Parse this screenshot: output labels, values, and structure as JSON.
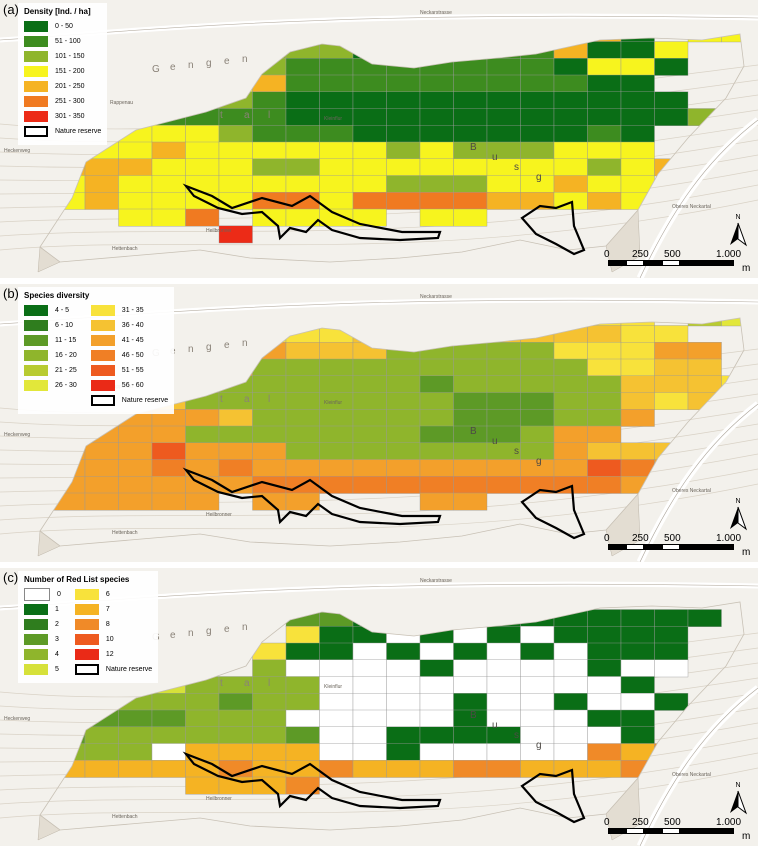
{
  "panels": [
    {
      "label": "(a)",
      "legend_title": "Density [Ind. / ha]",
      "legend_columns": [
        [
          {
            "label": "0 - 50",
            "color": "#0a6e16"
          },
          {
            "label": "51 - 100",
            "color": "#3d8c1f"
          },
          {
            "label": "101 - 150",
            "color": "#8fb52c"
          },
          {
            "label": "151 - 200",
            "color": "#f7f41e"
          },
          {
            "label": "201 - 250",
            "color": "#f5b323"
          },
          {
            "label": "251 - 300",
            "color": "#f07a21"
          },
          {
            "label": "301 - 350",
            "color": "#ec2b17"
          }
        ]
      ],
      "grid": [
        "......................5",
        "................551.44.",
        "......23331112225114...",
        ".....433222222221441...",
        "....334522222222211....",
        "..333332111111111111...",
        ".22322221111111111113..",
        "2334443222111111121....",
        "4444544444434333444....",
        "555544433444444443453..",
        "3454444444433344544.54.",
        "4454444664666655454.56.",
        "...446.4444.44.........",
        "......7................"
      ]
    },
    {
      "label": "(b)",
      "legend_title": "Species diversity",
      "legend_columns": [
        [
          {
            "label": "4 - 5",
            "color": "#0a6e16"
          },
          {
            "label": "6 - 10",
            "color": "#2f7d1e"
          },
          {
            "label": "11 - 15",
            "color": "#5d9a26"
          },
          {
            "label": "16 - 20",
            "color": "#8fb52c"
          },
          {
            "label": "21 - 25",
            "color": "#b8cb31"
          },
          {
            "label": "26 - 30",
            "color": "#e2e73a"
          }
        ],
        [
          {
            "label": "31 - 35",
            "color": "#f8e23b"
          },
          {
            "label": "36 - 40",
            "color": "#f5c232"
          },
          {
            "label": "41 - 45",
            "color": "#f3a02b"
          },
          {
            "label": "46 - 50",
            "color": "#f07f25"
          },
          {
            "label": "51 - 55",
            "color": "#ee5a1f"
          },
          {
            "label": "56 - 60",
            "color": "#ea2a17"
          }
        ]
      ],
      "grid": [
        "......................5",
        "................777.56.",
        "......77778888888877...",
        ".....9998884444477799..",
        "....99944444444447788..",
        "..99994444443444448887.",
        ".88984444444433344878..",
        "8999998444444333449....",
        "999994444444333499.....",
        "8999B999444444449888...",
        "9999A9A9999999999BA9A..",
        "9999999AAAAAAAAAAA9A99.",
        "999999.99...99.........",
        "......................."
      ]
    },
    {
      "label": "(c)",
      "legend_title": "Number of Red List species",
      "legend_columns": [
        [
          {
            "label": "0",
            "color": "#ffffff"
          },
          {
            "label": "1",
            "color": "#0a6e16"
          },
          {
            "label": "2",
            "color": "#2f7d1e"
          },
          {
            "label": "3",
            "color": "#5d9a26"
          },
          {
            "label": "4",
            "color": "#8fb52c"
          },
          {
            "label": "5",
            "color": "#d6e13a"
          }
        ],
        [
          {
            "label": "6",
            "color": "#f8e23b"
          },
          {
            "label": "7",
            "color": "#f5b323"
          },
          {
            "label": "8",
            "color": "#f08a28"
          },
          {
            "label": "10",
            "color": "#ee5a1f"
          },
          {
            "label": "12",
            "color": "#ea2a17"
          }
        ]
      ],
      "grid": [
        "..........1...........",
        "..........1...........",
        "........3311111111111.",
        "........611010101111..",
        ".......6110101010111..",
        ".......4000010000100..",
        "...4544440000000001...",
        "..344434400001001001..",
        ".333344400000100011...",
        "3344444430011110001...",
        "4444C777700100000878..",
        "4777778778777887778...",
        ".....7778.............",
        "......................"
      ]
    }
  ],
  "legend_nature_reserve": "Nature reserve",
  "map_text": {
    "valley_letters_top": [
      "G",
      "e",
      "n",
      "g",
      "e",
      "n"
    ],
    "valley_letters_left": [
      "t",
      "a",
      "l"
    ],
    "hill_letters": [
      "B",
      "u",
      "s",
      "g"
    ],
    "place_labels": [
      "Heckenweg",
      "Rappenau",
      "Hettenbach",
      "Oberes Neckartal",
      "Heilbronner",
      "Kleinflur",
      "Neckarstrasse"
    ]
  },
  "north_label": "N",
  "scale_bar": {
    "ticks": [
      "0",
      "250",
      "500",
      "1.000"
    ],
    "unit": "m"
  },
  "colors": {
    "reserve_outline": "#000000",
    "grid_line": "#9a9a9a",
    "basemap": "#f3f1ec"
  }
}
